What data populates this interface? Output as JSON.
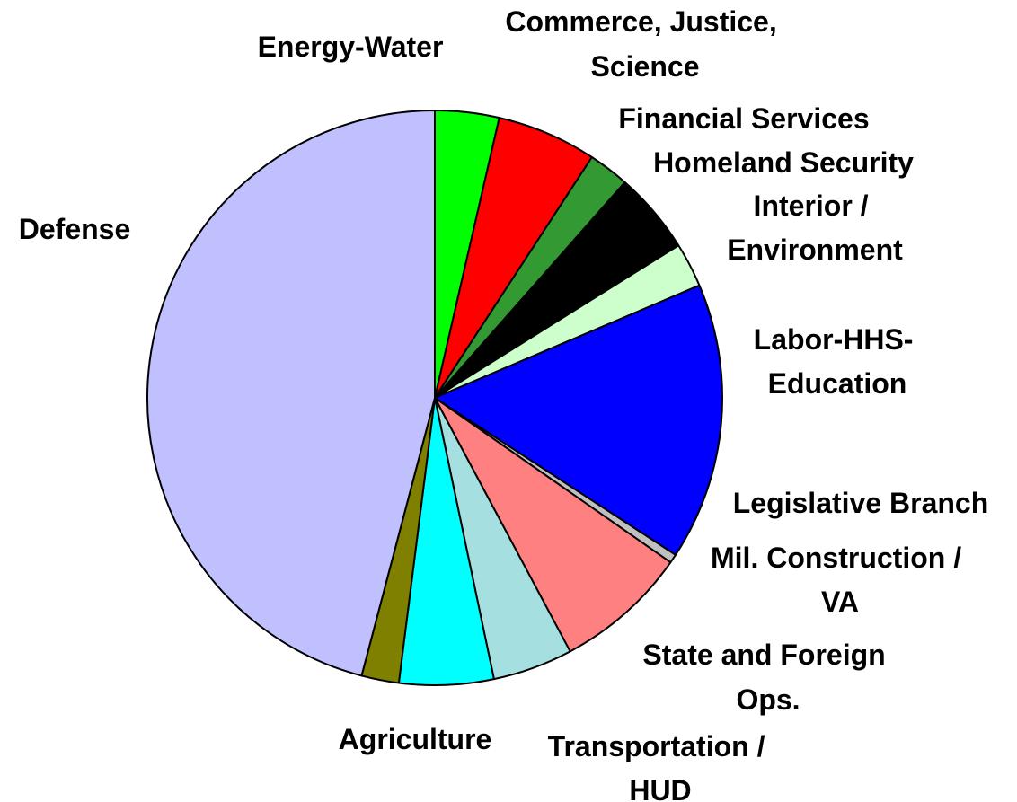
{
  "chart_data": {
    "type": "pie",
    "title": "",
    "start": "12 o'clock",
    "direction": "clockwise",
    "slices": [
      {
        "label": "Energy-Water",
        "value": 3.6,
        "color": "#00ff00"
      },
      {
        "label": "Commerce, Justice, Science",
        "value": 5.6,
        "color": "#ff0000"
      },
      {
        "label": "Financial Services",
        "value": 2.3,
        "color": "#339933"
      },
      {
        "label": "Homeland Security",
        "value": 4.6,
        "color": "#000000"
      },
      {
        "label": "Interior / Environment",
        "value": 2.5,
        "color": "#ccffcc"
      },
      {
        "label": "Labor-HHS-Education",
        "value": 15.6,
        "color": "#0000ff"
      },
      {
        "label": "Legislative Branch",
        "value": 0.5,
        "color": "#c0c0c0"
      },
      {
        "label": "Mil. Construction / VA",
        "value": 7.5,
        "color": "#ff8080"
      },
      {
        "label": "State and Foreign Ops.",
        "value": 4.5,
        "color": "#a6dfdf"
      },
      {
        "label": "Transportation / HUD",
        "value": 5.3,
        "color": "#00ffff"
      },
      {
        "label": "Agriculture",
        "value": 2.1,
        "color": "#808000"
      },
      {
        "label": "Defense",
        "value": 45.9,
        "color": "#c0c0ff"
      }
    ]
  }
}
